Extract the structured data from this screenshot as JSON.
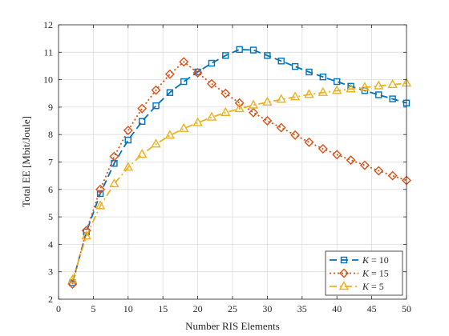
{
  "chart_data": {
    "type": "line",
    "title": "",
    "xlabel": "Number RIS Elements",
    "ylabel": "Total EE [Mbit/Joule]",
    "xlim": [
      0,
      50
    ],
    "ylim": [
      2,
      12
    ],
    "xticks": [
      0,
      5,
      10,
      15,
      20,
      25,
      30,
      35,
      40,
      45,
      50
    ],
    "yticks": [
      2,
      3,
      4,
      5,
      6,
      7,
      8,
      9,
      10,
      11,
      12
    ],
    "grid": true,
    "legend_position": "bottom-right",
    "x": [
      2,
      4,
      6,
      8,
      10,
      12,
      14,
      16,
      18,
      20,
      22,
      24,
      26,
      28,
      30,
      32,
      34,
      36,
      38,
      40,
      42,
      44,
      46,
      48,
      50
    ],
    "series": [
      {
        "name": "K = 10",
        "legend_var": "K",
        "legend_rest": " = 10",
        "color": "#0072BD",
        "marker": "square",
        "linestyle": "dashed",
        "values": [
          2.6,
          4.45,
          5.85,
          6.95,
          7.8,
          8.48,
          9.05,
          9.53,
          9.93,
          10.28,
          10.6,
          10.88,
          11.1,
          11.08,
          10.88,
          10.68,
          10.48,
          10.28,
          10.1,
          9.93,
          9.76,
          9.6,
          9.45,
          9.3,
          9.15
        ]
      },
      {
        "name": "K = 15",
        "legend_var": "K",
        "legend_rest": " = 15",
        "color": "#D95319",
        "marker": "diamond",
        "linestyle": "dotted",
        "values": [
          2.55,
          4.5,
          6.0,
          7.2,
          8.15,
          8.95,
          9.62,
          10.2,
          10.65,
          10.25,
          9.85,
          9.5,
          9.15,
          8.8,
          8.5,
          8.25,
          7.98,
          7.72,
          7.48,
          7.27,
          7.07,
          6.88,
          6.68,
          6.5,
          6.33
        ]
      },
      {
        "name": "K = 5",
        "legend_var": "K",
        "legend_rest": " = 5",
        "color": "#EDB120",
        "marker": "triangle",
        "linestyle": "dashdot",
        "values": [
          2.7,
          4.3,
          5.4,
          6.2,
          6.8,
          7.28,
          7.65,
          7.97,
          8.22,
          8.43,
          8.63,
          8.8,
          8.94,
          9.07,
          9.18,
          9.28,
          9.37,
          9.46,
          9.53,
          9.6,
          9.66,
          9.72,
          9.77,
          9.82,
          9.87
        ]
      }
    ]
  }
}
